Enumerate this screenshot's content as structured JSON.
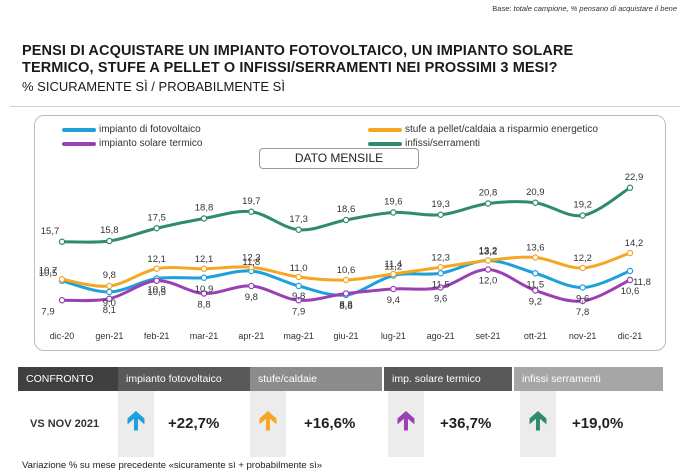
{
  "base_note": {
    "label": "Base:",
    "text": "totale campione, % pensano di acquistare il bene"
  },
  "title": "PENSI DI ACQUISTARE UN IMPIANTO FOTOVOLTAICO, UN IMPIANTO SOLARE TERMICO,  STUFE A PELLET O INFISSI/SERRAMENTI NEI PROSSIMI 3 MESI?",
  "subtitle": "% SICURAMENTE SÌ / PROBABILMENTE SÌ",
  "monthly_label": "DATO MENSILE",
  "chart_data": {
    "type": "line",
    "categories": [
      "dic-20",
      "gen-21",
      "feb-21",
      "mar-21",
      "apr-21",
      "mag-21",
      "giu-21",
      "lug-21",
      "ago-21",
      "set-21",
      "ott-21",
      "nov-21",
      "dic-21"
    ],
    "series": [
      {
        "name": "impianto di fotovoltaico",
        "color": "#1ea0dc",
        "values": [
          10.5,
          9.0,
          10.8,
          10.9,
          11.8,
          9.8,
          8.6,
          11.2,
          11.5,
          13.2,
          11.5,
          9.6,
          11.8
        ]
      },
      {
        "name": "stufe a pellet/caldaia a risparmio energetico",
        "color": "#f5a623",
        "values": [
          10.7,
          9.8,
          12.1,
          12.1,
          12.3,
          11.0,
          10.6,
          11.4,
          12.3,
          13.2,
          13.6,
          12.2,
          14.2
        ]
      },
      {
        "name": "impianto solare termico",
        "color": "#9b3fb5",
        "values": [
          7.9,
          8.1,
          10.5,
          8.8,
          9.8,
          7.9,
          8.8,
          9.4,
          9.6,
          12.0,
          9.2,
          7.8,
          10.6
        ]
      },
      {
        "name": "infissi/serramenti",
        "color": "#2e8b6e",
        "values": [
          15.7,
          15.8,
          17.5,
          18.8,
          19.7,
          17.3,
          18.6,
          19.6,
          19.3,
          20.8,
          20.9,
          19.2,
          22.9
        ]
      }
    ],
    "data_labels": [
      [
        "10,5",
        "9,0",
        "10,8",
        "10,9",
        "11,8",
        "9,8",
        "8,6",
        "11,2",
        "11,5",
        "13,2",
        "11,5",
        "9,6",
        "11,8"
      ],
      [
        "10,7",
        "9,8",
        "12,1",
        "12,1",
        "12,3",
        "11,0",
        "10,6",
        "11,4",
        "12,3",
        "13,2",
        "13,6",
        "12,2",
        "14,2"
      ],
      [
        "7,9",
        "8,1",
        "10,5",
        "8,8",
        "9,8",
        "7,9",
        "8,8",
        "9,4",
        "9,6",
        "12,0",
        "9,2",
        "7,8",
        "10,6"
      ],
      [
        "15,7",
        "15,8",
        "17,5",
        "18,8",
        "19,7",
        "17,3",
        "18,6",
        "19,6",
        "19,3",
        "20,8",
        "20,9",
        "19,2",
        "22,9"
      ]
    ],
    "legend_labels": [
      "impianto di fotovoltaico",
      "stufe a pellet/caldaia a risparmio energetico",
      "impianto solare termico",
      "infissi/serramenti"
    ],
    "ylim": [
      5,
      25
    ],
    "grid": false,
    "legend_position": "top"
  },
  "comparison": {
    "header_label": "CONFRONTO",
    "row_label": "VS NOV 2021",
    "items": [
      {
        "name": "impianto fotovoltaico",
        "value": "+22,7%",
        "color": "#1ea0dc",
        "head_color": "#595959",
        "arrow": "up-arrow"
      },
      {
        "name": "stufe/caldaie",
        "value": "+16,6%",
        "color": "#f5a623",
        "head_color": "#8c8c8c",
        "arrow": "up-arrow"
      },
      {
        "name": "imp. solare termico",
        "value": "+36,7%",
        "color": "#9b3fb5",
        "head_color": "#595959",
        "arrow": "up-arrow"
      },
      {
        "name": "infissi serramenti",
        "value": "+19,0%",
        "color": "#2e8b6e",
        "head_color": "#a6a6a6",
        "arrow": "up-arrow"
      }
    ],
    "confronto_color": "#404040"
  },
  "footnote": "Variazione % su mese precedente «sicuramente sì + probabilmente sì»"
}
